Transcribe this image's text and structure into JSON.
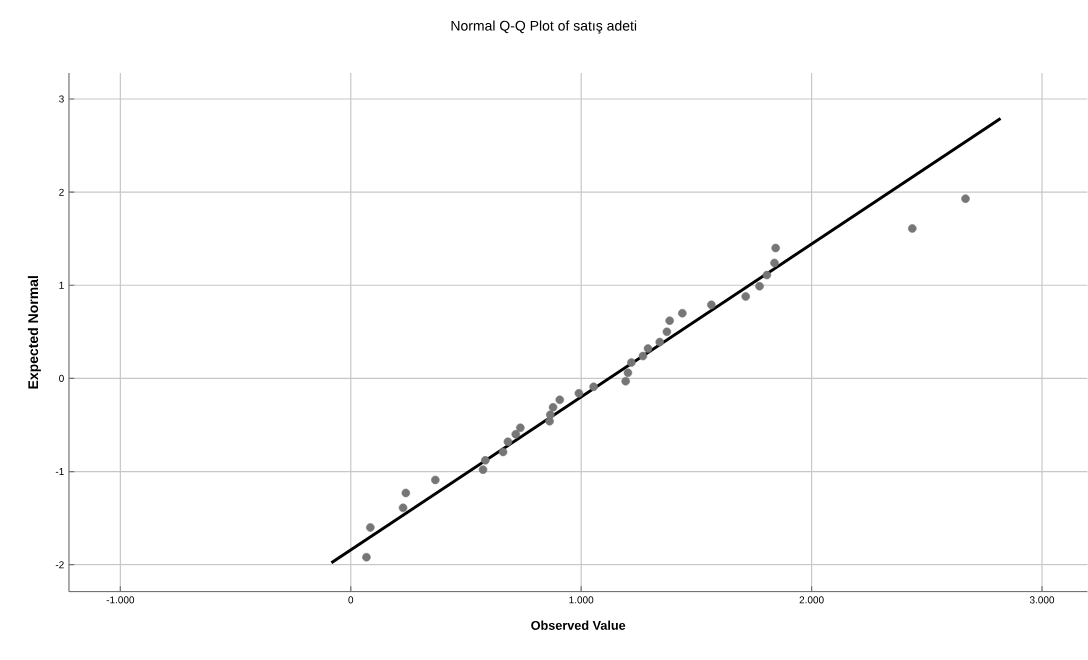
{
  "chart_data": {
    "type": "scatter",
    "title": "Normal Q-Q Plot of satış adeti",
    "xlabel": "Observed Value",
    "ylabel": "Expected Normal",
    "x": [
      68,
      85,
      227,
      239,
      367,
      574,
      584,
      661,
      682,
      716,
      736,
      863,
      866,
      878,
      907,
      990,
      1054,
      1193,
      1203,
      1218,
      1268,
      1290,
      1341,
      1372,
      1384,
      1439,
      1565,
      1714,
      1774,
      1806,
      1839,
      1844,
      2437,
      2668
    ],
    "series": [
      {
        "color": "#767676",
        "marker": "circle",
        "values": [
          -1.92,
          -1.6,
          -1.39,
          -1.23,
          -1.09,
          -0.98,
          -0.88,
          -0.79,
          -0.68,
          -0.6,
          -0.53,
          -0.46,
          -0.39,
          -0.31,
          -0.23,
          -0.16,
          -0.09,
          -0.03,
          0.06,
          0.17,
          0.24,
          0.32,
          0.39,
          0.5,
          0.62,
          0.7,
          0.79,
          0.88,
          0.99,
          1.11,
          1.24,
          1.4,
          1.61,
          1.93
        ]
      },
      {
        "type": "line",
        "color": "#000000",
        "marker": "none",
        "x": [
          -84,
          2820
        ],
        "values": [
          -1.98,
          2.79
        ]
      }
    ],
    "xlim": [
      -1223,
      3197
    ],
    "ylim": [
      -2.29,
      3.28
    ],
    "xticks": [
      {
        "value": -1000,
        "label": "-1.000"
      },
      0,
      {
        "value": 1000,
        "label": "1.000"
      },
      {
        "value": 2000,
        "label": "2.000"
      },
      {
        "value": 3000,
        "label": "3.000"
      }
    ],
    "yticks": [
      -2,
      -1,
      0,
      1,
      2,
      3
    ],
    "grid": true
  }
}
